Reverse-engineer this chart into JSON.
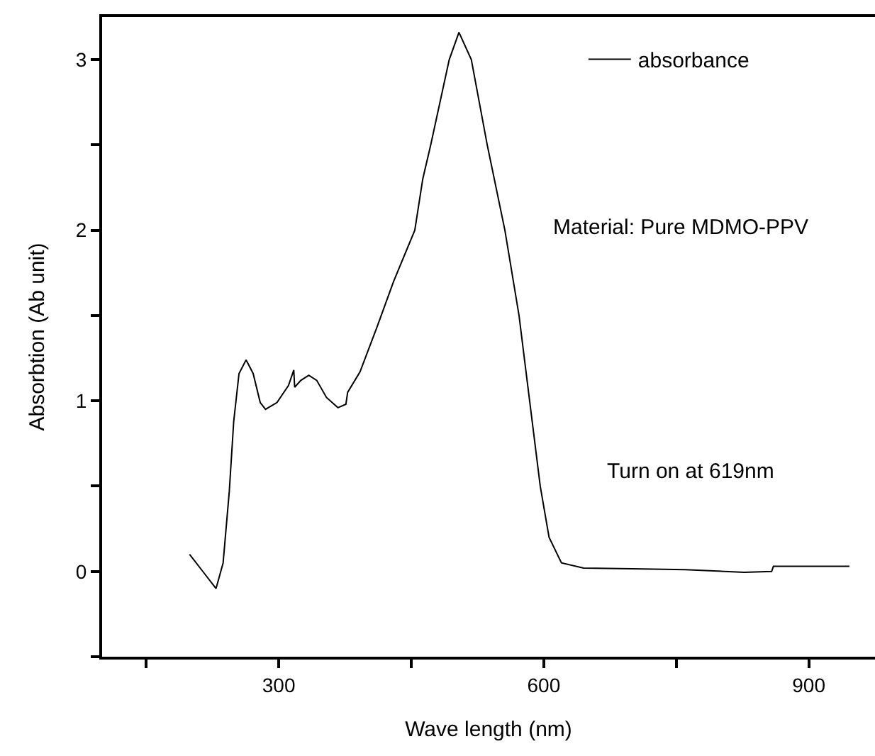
{
  "chart_data": {
    "type": "line",
    "xlabel": "Wave length (nm)",
    "ylabel": "Absorbtion (Ab unit)",
    "xlim": [
      100,
      975
    ],
    "ylim": [
      -0.5,
      3.25
    ],
    "xticks": [
      {
        "value": 150,
        "label": null
      },
      300,
      {
        "value": 450,
        "label": null
      },
      600,
      {
        "value": 750,
        "label": null
      },
      900
    ],
    "yticks": [
      {
        "value": -0.5,
        "label": null
      },
      0,
      {
        "value": 0.5,
        "label": null
      },
      1,
      {
        "value": 1.5,
        "label": null
      },
      2,
      {
        "value": 2.5,
        "label": null
      },
      3
    ],
    "grid": false,
    "legend": "top right",
    "marker": "none",
    "line_style": "solid",
    "annotations": [
      "Material: Pure MDMO-PPV",
      "Turn on at 619nm"
    ],
    "series": [
      {
        "name": "absorbance",
        "color": "#000000",
        "x": [
          199,
          214,
          229,
          237,
          244,
          249,
          255,
          263,
          271,
          279,
          285,
          298,
          311,
          317,
          318,
          325,
          334,
          343,
          354,
          367,
          376,
          378,
          392,
          411,
          430,
          454,
          463,
          472,
          493,
          504,
          518,
          536,
          556,
          572,
          584,
          596,
          606,
          620,
          645,
          700,
          760,
          827,
          858,
          860,
          946
        ],
        "values": [
          0.1,
          0.0,
          -0.1,
          0.05,
          0.47,
          0.88,
          1.16,
          1.24,
          1.16,
          0.99,
          0.95,
          0.99,
          1.09,
          1.18,
          1.08,
          1.12,
          1.15,
          1.12,
          1.02,
          0.96,
          0.98,
          1.05,
          1.17,
          1.43,
          1.7,
          2.0,
          2.3,
          2.5,
          3.0,
          3.16,
          3.0,
          2.5,
          2.0,
          1.5,
          1.0,
          0.5,
          0.2,
          0.05,
          0.02,
          0.015,
          0.01,
          -0.005,
          0.0,
          0.03,
          0.03
        ]
      }
    ]
  }
}
